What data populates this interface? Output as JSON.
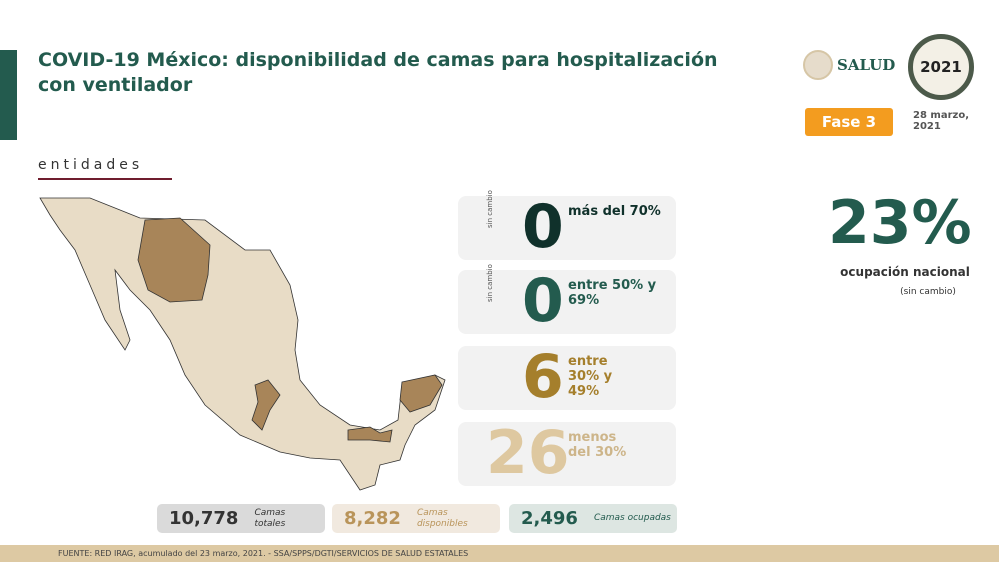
{
  "title": "COVID-19 México: disponibilidad de camas para hospitalización con ventilador",
  "subtitle": "entidades",
  "logo_salud": "SALUD",
  "logo_2021": "2021",
  "fase": "Fase 3",
  "date": "28 marzo, 2021",
  "categories": [
    {
      "count": "0",
      "label": "más del 70%",
      "note": "sin cambio",
      "color": "#10312b"
    },
    {
      "count": "0",
      "label": "entre 50% y 69%",
      "note": "sin cambio",
      "color": "#235b4e"
    },
    {
      "count": "6",
      "label": "entre 30% y 49%",
      "note": "",
      "color": "#a57f2c"
    },
    {
      "count": "26",
      "label": "menos del 30%",
      "note": "",
      "color": "#dec8a0"
    }
  ],
  "national": {
    "value": "23%",
    "label": "ocupación nacional",
    "note": "(sin cambio)"
  },
  "totals": [
    {
      "value": "10,778",
      "label": "Camas totales"
    },
    {
      "value": "8,282",
      "label": "Camas disponibles"
    },
    {
      "value": "2,496",
      "label": "Camas ocupadas"
    }
  ],
  "footer": "FUENTE: RED IRAG, acumulado del 23 marzo, 2021. -  SSA/SPPS/DGTI/SERVICIOS DE SALUD ESTATALES",
  "colors": {
    "green": "#235b4e",
    "gold": "#a57f2c",
    "map_base": "#e8dcc6",
    "map_highlight": "#a88559"
  }
}
